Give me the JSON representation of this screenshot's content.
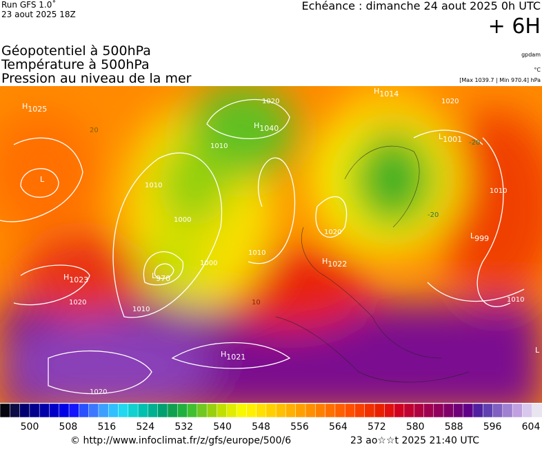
{
  "header": {
    "run": "Run GFS 1.0˚",
    "run_date": "23 aout 2025 18Z",
    "echeance": "Echéance : dimanche 24 aout 2025 0h UTC",
    "offset": "+ 6H",
    "lines": [
      "Géopotentiel à 500hPa",
      "Température à 500hPa",
      "Pression au niveau de la mer"
    ],
    "unit_geo": "gpdam",
    "unit_temp": "°C",
    "pressure_range": "[Max 1039.7 | Min 970.4] hPa"
  },
  "map": {
    "centers": [
      {
        "letter": "H",
        "value": "1025"
      },
      {
        "letter": "H",
        "value": "1040"
      },
      {
        "letter": "H",
        "value": "1014"
      },
      {
        "letter": "L",
        "value": "999"
      },
      {
        "letter": "H",
        "value": "1022"
      },
      {
        "letter": "H",
        "value": "1023"
      },
      {
        "letter": "L",
        "value": "970"
      },
      {
        "letter": "H",
        "value": "1021"
      },
      {
        "letter": "L",
        "value": ""
      },
      {
        "letter": "L",
        "value": "1001"
      },
      {
        "letter": "L",
        "value": ""
      }
    ],
    "contour_labels": [
      "1020",
      "1010",
      "1000",
      "1010",
      "1000",
      "1020",
      "1010",
      "1010",
      "1020",
      "1020",
      "1010",
      "1010",
      "1020",
      "-20",
      "20",
      "10",
      "-20"
    ]
  },
  "colorbar": {
    "colors": [
      "#05050f",
      "#0d0d45",
      "#000070",
      "#00008c",
      "#0000a8",
      "#0000c8",
      "#0000e6",
      "#1414ff",
      "#2850ff",
      "#3c78ff",
      "#3ca0ff",
      "#30c0ff",
      "#20d8f0",
      "#10d0d0",
      "#00c0b0",
      "#00b090",
      "#00a070",
      "#10a050",
      "#20b040",
      "#40c030",
      "#70c820",
      "#98d010",
      "#c0e000",
      "#e0ec00",
      "#f8f800",
      "#fff000",
      "#ffe000",
      "#ffd000",
      "#ffc000",
      "#ffb000",
      "#ffa000",
      "#ff9000",
      "#ff8000",
      "#ff7000",
      "#ff6000",
      "#ff5000",
      "#f84000",
      "#f03000",
      "#e82000",
      "#e01010",
      "#d00020",
      "#c00030",
      "#b00040",
      "#a00050",
      "#90005c",
      "#800068",
      "#700078",
      "#600088",
      "#5020a0",
      "#6040b0",
      "#8060c0",
      "#a080d0",
      "#c0a0e0",
      "#d8c8ec",
      "#e8e4f0"
    ],
    "ticks": [
      500,
      508,
      516,
      524,
      532,
      540,
      548,
      556,
      564,
      572,
      580,
      588,
      596,
      604
    ]
  },
  "footer": {
    "url": "© http://www.infoclimat.fr/z/gfs/europe/500/6",
    "timestamp": "23 ao☆☆t 2025 21:40 UTC"
  }
}
